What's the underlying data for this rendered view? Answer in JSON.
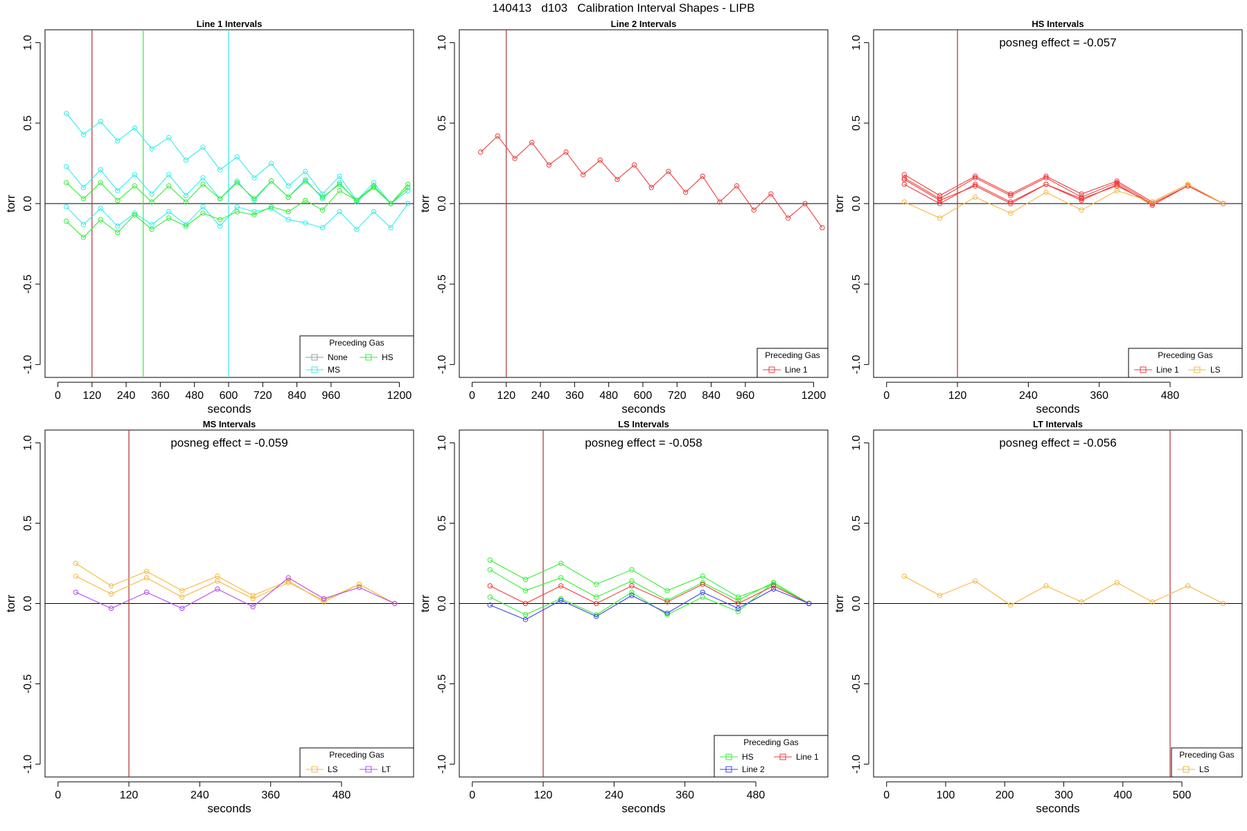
{
  "figure": {
    "title": "140413   d103   Calibration Interval Shapes - LIPB"
  },
  "colors": {
    "Line 1": "#ee3b3b",
    "Line 2": "#3f3fee",
    "None": "#9a9a9a",
    "MS": "#33ecec",
    "HS": "#33ee33",
    "LS": "#f5b73d",
    "LT": "#b347ee",
    "vline_red": "#b03030",
    "vline_green": "#33ee33",
    "vline_cyan": "#33ecec",
    "zero_line": "#000000"
  },
  "chart_data": [
    {
      "type": "line",
      "title": "Line 1 Intervals",
      "xlabel": "seconds",
      "ylabel": "torr",
      "xlim": [
        -45,
        1250
      ],
      "ylim": [
        -1.08,
        1.08
      ],
      "xticks": [
        0,
        120,
        240,
        360,
        480,
        600,
        720,
        840,
        960,
        1200
      ],
      "yticks": [
        -1.0,
        -0.5,
        0.0,
        0.5,
        1.0
      ],
      "ytick_labels": [
        "-1.0",
        "-0.5",
        "0.0",
        "0.5",
        "1.0"
      ],
      "vlines": [
        {
          "x": 120,
          "color_key": "vline_red"
        },
        {
          "x": 300,
          "color_key": "vline_green"
        },
        {
          "x": 600,
          "color_key": "vline_cyan"
        }
      ],
      "legend": {
        "title": "Preceding Gas",
        "position": "bottom-right",
        "columns": 2,
        "entries": [
          "None",
          "HS",
          "MS"
        ]
      },
      "series": [
        {
          "name": "MS",
          "x": [
            30,
            90,
            150,
            210,
            270,
            330,
            390,
            450,
            510,
            570,
            630,
            690,
            750,
            810,
            870,
            930,
            990,
            1050,
            1110,
            1170,
            1230
          ],
          "values": [
            0.56,
            0.43,
            0.51,
            0.39,
            0.47,
            0.34,
            0.41,
            0.27,
            0.35,
            0.21,
            0.29,
            0.16,
            0.25,
            0.11,
            0.2,
            0.06,
            0.17,
            0.02,
            0.13,
            0.0,
            0.1
          ]
        },
        {
          "name": "MS",
          "x": [
            30,
            90,
            150,
            210,
            270,
            330,
            390,
            450,
            510,
            570,
            630,
            690,
            750,
            810,
            870,
            930,
            990,
            1050,
            1110,
            1170,
            1230
          ],
          "values": [
            0.23,
            0.1,
            0.21,
            0.08,
            0.18,
            0.06,
            0.18,
            0.05,
            0.16,
            0.03,
            0.14,
            0.02,
            0.14,
            0.04,
            0.15,
            0.03,
            0.13,
            0.01,
            0.11,
            0.0,
            0.08
          ]
        },
        {
          "name": "MS",
          "x": [
            30,
            90,
            150,
            210,
            270,
            330,
            390,
            450,
            510,
            570,
            630,
            690,
            750,
            810,
            870,
            930,
            990,
            1050,
            1110,
            1170,
            1230
          ],
          "values": [
            -0.02,
            -0.13,
            -0.03,
            -0.14,
            -0.06,
            -0.13,
            -0.05,
            -0.13,
            -0.02,
            -0.14,
            -0.02,
            -0.05,
            -0.03,
            -0.1,
            -0.12,
            -0.15,
            -0.05,
            -0.16,
            -0.05,
            -0.15,
            0.0
          ]
        },
        {
          "name": "HS",
          "x": [
            30,
            90,
            150,
            210,
            270,
            330,
            390,
            450,
            510,
            570,
            630,
            690,
            750,
            810,
            870,
            930,
            990,
            1050,
            1110,
            1170,
            1230
          ],
          "values": [
            0.13,
            0.03,
            0.13,
            0.02,
            0.11,
            0.01,
            0.11,
            0.01,
            0.12,
            0.03,
            0.13,
            0.03,
            0.14,
            0.04,
            0.14,
            0.04,
            0.12,
            0.02,
            0.11,
            0.0,
            0.12
          ]
        },
        {
          "name": "HS",
          "x": [
            30,
            90,
            150,
            210,
            270,
            330,
            390,
            450,
            510,
            570,
            630,
            690,
            750,
            810,
            870,
            930,
            990,
            1050,
            1110,
            1170,
            1230
          ],
          "values": [
            -0.11,
            -0.21,
            -0.1,
            -0.18,
            -0.07,
            -0.16,
            -0.09,
            -0.14,
            -0.06,
            -0.1,
            -0.05,
            -0.07,
            -0.02,
            -0.05,
            0.02,
            -0.04,
            0.08,
            0.02,
            0.1,
            0.0,
            0.1
          ]
        }
      ]
    },
    {
      "type": "line",
      "title": "Line 2 Intervals",
      "xlabel": "seconds",
      "ylabel": "torr",
      "xlim": [
        -45,
        1250
      ],
      "ylim": [
        -1.08,
        1.08
      ],
      "xticks": [
        0,
        120,
        240,
        360,
        480,
        600,
        720,
        840,
        960,
        1200
      ],
      "yticks": [
        -1.0,
        -0.5,
        0.0,
        0.5,
        1.0
      ],
      "ytick_labels": [
        "-1.0",
        "-0.5",
        "0.0",
        "0.5",
        "1.0"
      ],
      "vlines": [
        {
          "x": 120,
          "color_key": "vline_red"
        }
      ],
      "legend": {
        "title": "Preceding Gas",
        "position": "bottom-right",
        "columns": 1,
        "entries": [
          "Line 1"
        ]
      },
      "series": [
        {
          "name": "Line 1",
          "x": [
            30,
            90,
            150,
            210,
            270,
            330,
            390,
            450,
            510,
            570,
            630,
            690,
            750,
            810,
            870,
            930,
            990,
            1050,
            1110,
            1170,
            1230
          ],
          "values": [
            0.32,
            0.42,
            0.28,
            0.38,
            0.24,
            0.32,
            0.18,
            0.27,
            0.15,
            0.24,
            0.1,
            0.2,
            0.07,
            0.17,
            0.01,
            0.11,
            -0.04,
            0.06,
            -0.09,
            0.0,
            -0.15
          ]
        }
      ]
    },
    {
      "type": "line",
      "title": "HS Intervals",
      "annotation": "posneg effect = -0.057",
      "xlabel": "seconds",
      "ylabel": "torr",
      "xlim": [
        -22,
        602
      ],
      "ylim": [
        -1.08,
        1.08
      ],
      "xticks": [
        0,
        120,
        240,
        360,
        480
      ],
      "yticks": [
        -1.0,
        -0.5,
        0.0,
        0.5,
        1.0
      ],
      "ytick_labels": [
        "-1.0",
        "-0.5",
        "0.0",
        "0.5",
        "1.0"
      ],
      "vlines": [
        {
          "x": 120,
          "color_key": "vline_red"
        }
      ],
      "legend": {
        "title": "Preceding Gas",
        "position": "bottom-right",
        "columns": 2,
        "entries": [
          "Line 1",
          "LS"
        ]
      },
      "series": [
        {
          "name": "Line 1",
          "x": [
            30,
            90,
            150,
            210,
            270,
            330,
            390,
            450,
            510,
            570
          ],
          "values": [
            0.18,
            0.05,
            0.17,
            0.06,
            0.17,
            0.06,
            0.14,
            0.01,
            0.12,
            0.0
          ]
        },
        {
          "name": "Line 1",
          "x": [
            30,
            90,
            150,
            210,
            270,
            330,
            390,
            450,
            510,
            570
          ],
          "values": [
            0.16,
            0.03,
            0.16,
            0.05,
            0.16,
            0.04,
            0.13,
            0.0,
            0.11,
            0.0
          ]
        },
        {
          "name": "Line 1",
          "x": [
            30,
            90,
            150,
            210,
            270,
            330,
            390,
            450,
            510,
            570
          ],
          "values": [
            0.12,
            0.0,
            0.12,
            0.01,
            0.12,
            0.02,
            0.12,
            -0.01,
            0.11,
            0.0
          ]
        },
        {
          "name": "Line 1",
          "x": [
            30,
            90,
            150,
            210,
            270,
            330,
            390,
            450,
            510,
            570
          ],
          "values": [
            0.15,
            0.02,
            0.11,
            0.0,
            0.12,
            0.03,
            0.11,
            0.0,
            0.11,
            0.0
          ]
        },
        {
          "name": "LS",
          "x": [
            30,
            90,
            150,
            210,
            270,
            330,
            390,
            450,
            510,
            570
          ],
          "values": [
            0.01,
            -0.09,
            0.04,
            -0.06,
            0.07,
            -0.04,
            0.08,
            0.01,
            0.12,
            0.0
          ]
        }
      ]
    },
    {
      "type": "line",
      "title": "MS Intervals",
      "annotation": "posneg effect = -0.059",
      "xlabel": "seconds",
      "ylabel": "torr",
      "xlim": [
        -22,
        602
      ],
      "ylim": [
        -1.08,
        1.08
      ],
      "xticks": [
        0,
        120,
        240,
        360,
        480
      ],
      "yticks": [
        -1.0,
        -0.5,
        0.0,
        0.5,
        1.0
      ],
      "ytick_labels": [
        "-1.0",
        "-0.5",
        "0.0",
        "0.5",
        "1.0"
      ],
      "vlines": [
        {
          "x": 120,
          "color_key": "vline_red"
        }
      ],
      "legend": {
        "title": "Preceding Gas",
        "position": "bottom-right",
        "columns": 2,
        "entries": [
          "LS",
          "LT"
        ]
      },
      "series": [
        {
          "name": "LS",
          "x": [
            30,
            90,
            150,
            210,
            270,
            330,
            390,
            450,
            510,
            570
          ],
          "values": [
            0.25,
            0.11,
            0.2,
            0.08,
            0.17,
            0.05,
            0.14,
            0.01,
            0.12,
            0.0
          ]
        },
        {
          "name": "LS",
          "x": [
            30,
            90,
            150,
            210,
            270,
            330,
            390,
            450,
            510,
            570
          ],
          "values": [
            0.17,
            0.06,
            0.16,
            0.04,
            0.14,
            0.03,
            0.13,
            0.02,
            0.12,
            0.0
          ]
        },
        {
          "name": "LT",
          "x": [
            30,
            90,
            150,
            210,
            270,
            330,
            390,
            450,
            510,
            570
          ],
          "values": [
            0.07,
            -0.03,
            0.07,
            -0.03,
            0.09,
            -0.02,
            0.16,
            0.03,
            0.1,
            0.0
          ]
        }
      ]
    },
    {
      "type": "line",
      "title": "LS Intervals",
      "annotation": "posneg effect = -0.058",
      "xlabel": "seconds",
      "ylabel": "torr",
      "xlim": [
        -22,
        602
      ],
      "ylim": [
        -1.08,
        1.08
      ],
      "xticks": [
        0,
        120,
        240,
        360,
        480
      ],
      "yticks": [
        -1.0,
        -0.5,
        0.0,
        0.5,
        1.0
      ],
      "ytick_labels": [
        "-1.0",
        "-0.5",
        "0.0",
        "0.5",
        "1.0"
      ],
      "vlines": [
        {
          "x": 120,
          "color_key": "vline_red"
        }
      ],
      "legend": {
        "title": "Preceding Gas",
        "position": "bottom-right",
        "columns": 2,
        "entries": [
          "HS",
          "Line 1",
          "Line 2"
        ]
      },
      "series": [
        {
          "name": "HS",
          "x": [
            30,
            90,
            150,
            210,
            270,
            330,
            390,
            450,
            510,
            570
          ],
          "values": [
            0.27,
            0.15,
            0.25,
            0.12,
            0.21,
            0.08,
            0.17,
            0.04,
            0.12,
            0.0
          ]
        },
        {
          "name": "HS",
          "x": [
            30,
            90,
            150,
            210,
            270,
            330,
            390,
            450,
            510,
            570
          ],
          "values": [
            0.21,
            0.08,
            0.16,
            0.04,
            0.14,
            0.02,
            0.13,
            0.02,
            0.13,
            0.0
          ]
        },
        {
          "name": "HS",
          "x": [
            30,
            90,
            150,
            210,
            270,
            330,
            390,
            450,
            510,
            570
          ],
          "values": [
            0.04,
            -0.07,
            0.03,
            -0.07,
            0.07,
            -0.07,
            0.04,
            -0.05,
            0.13,
            0.0
          ]
        },
        {
          "name": "Line 1",
          "x": [
            30,
            90,
            150,
            210,
            270,
            330,
            390,
            450,
            510,
            570
          ],
          "values": [
            0.11,
            0.0,
            0.11,
            0.0,
            0.11,
            0.01,
            0.12,
            0.0,
            0.11,
            0.0
          ]
        },
        {
          "name": "Line 2",
          "x": [
            30,
            90,
            150,
            210,
            270,
            330,
            390,
            450,
            510,
            570
          ],
          "values": [
            -0.01,
            -0.1,
            0.02,
            -0.08,
            0.05,
            -0.06,
            0.07,
            -0.03,
            0.09,
            0.0
          ]
        }
      ]
    },
    {
      "type": "line",
      "title": "LT Intervals",
      "annotation": "posneg effect = -0.056",
      "xlabel": "seconds",
      "ylabel": "torr",
      "xlim": [
        -22,
        602
      ],
      "ylim": [
        -1.08,
        1.08
      ],
      "xticks": [
        0,
        100,
        200,
        300,
        400,
        500
      ],
      "yticks": [
        -1.0,
        -0.5,
        0.0,
        0.5,
        1.0
      ],
      "ytick_labels": [
        "-1.0",
        "-0.5",
        "0.0",
        "0.5",
        "1.0"
      ],
      "vlines": [
        {
          "x": 480,
          "color_key": "vline_red"
        }
      ],
      "legend": {
        "title": "Preceding Gas",
        "position": "bottom-right",
        "columns": 1,
        "entries": [
          "LS"
        ]
      },
      "series": [
        {
          "name": "LS",
          "x": [
            30,
            90,
            150,
            210,
            270,
            330,
            390,
            450,
            510,
            570
          ],
          "values": [
            0.17,
            0.05,
            0.14,
            -0.01,
            0.11,
            0.01,
            0.13,
            0.01,
            0.11,
            0.0
          ]
        }
      ]
    }
  ]
}
